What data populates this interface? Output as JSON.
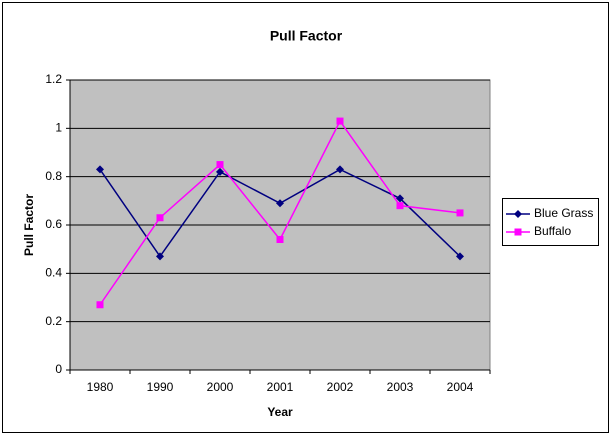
{
  "chart_data": {
    "type": "line",
    "title": "Pull Factor",
    "x_label": "Year",
    "y_label": "Pull Factor",
    "categories": [
      "1980",
      "1990",
      "2000",
      "2001",
      "2002",
      "2003",
      "2004"
    ],
    "series": [
      {
        "name": "Blue Grass",
        "color": "#000080",
        "marker": "diamond",
        "values": [
          0.83,
          0.47,
          0.82,
          0.69,
          0.83,
          0.71,
          0.47
        ]
      },
      {
        "name": "Buffalo",
        "color": "#ff00ff",
        "marker": "square",
        "values": [
          0.27,
          0.63,
          0.85,
          0.54,
          1.03,
          0.68,
          0.65
        ]
      }
    ],
    "ylim": [
      0,
      1.2
    ],
    "yticks": [
      0,
      0.2,
      0.4,
      0.6,
      0.8,
      1,
      1.2
    ],
    "grid": true,
    "legend": "right"
  }
}
